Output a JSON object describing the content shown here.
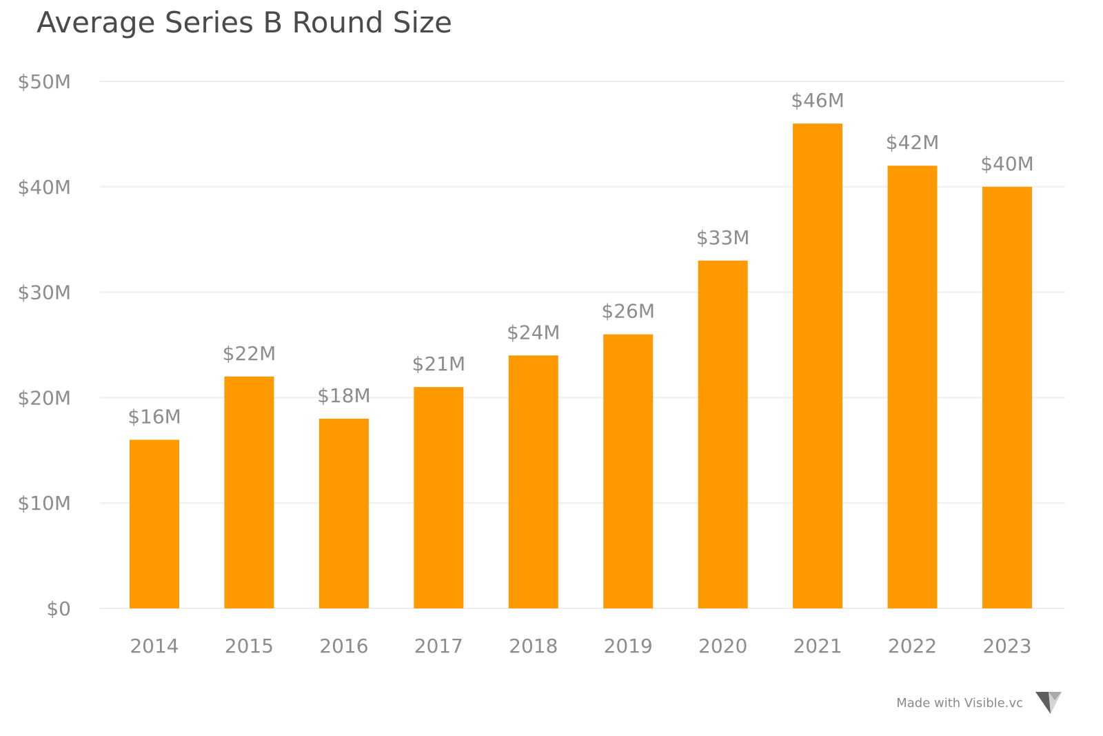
{
  "chart_data": {
    "type": "bar",
    "title": "Average Series B Round Size",
    "xlabel": "",
    "ylabel": "",
    "categories": [
      "2014",
      "2015",
      "2016",
      "2017",
      "2018",
      "2019",
      "2020",
      "2021",
      "2022",
      "2023"
    ],
    "values": [
      16,
      22,
      18,
      21,
      24,
      26,
      33,
      46,
      42,
      40
    ],
    "data_labels": [
      "$16M",
      "$22M",
      "$18M",
      "$21M",
      "$24M",
      "$26M",
      "$33M",
      "$46M",
      "$42M",
      "$40M"
    ],
    "value_unit": "$M",
    "ylim": [
      0,
      50
    ],
    "y_ticks": [
      0,
      10,
      20,
      30,
      40,
      50
    ],
    "y_tick_labels": [
      "$0",
      "$10M",
      "$20M",
      "$30M",
      "$40M",
      "$50M"
    ],
    "grid": true,
    "legend": "none",
    "bar_color": "#FF9900"
  },
  "footer": {
    "text": "Made with Visible.vc",
    "logo_icon": "visible-logo-icon"
  },
  "colors": {
    "title": "#4a4a4a",
    "axis_text": "#8c8c8c",
    "gridline": "#eeeeee"
  }
}
